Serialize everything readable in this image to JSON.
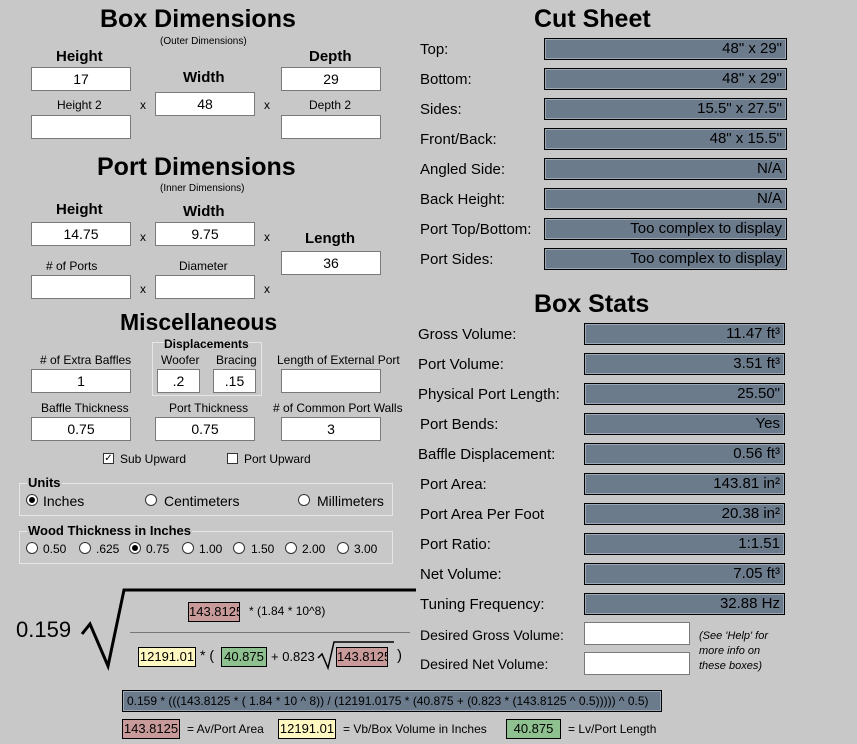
{
  "box": {
    "title": "Box Dimensions",
    "subtitle": "(Outer Dimensions)",
    "height_label": "Height",
    "height": "17",
    "width_label": "Width",
    "width": "48",
    "depth_label": "Depth",
    "depth": "29",
    "height2_label": "Height 2",
    "height2": "",
    "depth2_label": "Depth 2",
    "depth2": "",
    "x": "x"
  },
  "port": {
    "title": "Port Dimensions",
    "subtitle": "(Inner Dimensions)",
    "height_label": "Height",
    "height": "14.75",
    "width_label": "Width",
    "width": "9.75",
    "length_label": "Length",
    "length": "36",
    "ports_label": "# of Ports",
    "ports": "",
    "diameter_label": "Diameter",
    "diameter": ""
  },
  "misc": {
    "title": "Miscellaneous",
    "extra_baffles_label": "# of Extra Baffles",
    "extra_baffles": "1",
    "displacements_label": "Displacements",
    "woofer_label": "Woofer",
    "woofer": ".2",
    "bracing_label": "Bracing",
    "bracing": ".15",
    "ext_port_label": "Length of External Port",
    "ext_port": "",
    "baffle_thk_label": "Baffle Thickness",
    "baffle_thk": "0.75",
    "port_thk_label": "Port Thickness",
    "port_thk": "0.75",
    "common_walls_label": "# of Common Port Walls",
    "common_walls": "3",
    "sub_upward": "Sub Upward",
    "port_upward": "Port Upward"
  },
  "units": {
    "title": "Units",
    "inches": "Inches",
    "cm": "Centimeters",
    "mm": "Millimeters"
  },
  "wood": {
    "title": "Wood Thickness in Inches",
    "opts": [
      "0.50",
      ".625",
      "0.75",
      "1.00",
      "1.50",
      "2.00",
      "3.00"
    ]
  },
  "cut": {
    "title": "Cut Sheet",
    "rows": [
      {
        "label": "Top:",
        "value": "48\" x 29\""
      },
      {
        "label": "Bottom:",
        "value": "48\" x 29\""
      },
      {
        "label": "Sides:",
        "value": "15.5\" x 27.5\""
      },
      {
        "label": "Front/Back:",
        "value": "48\" x 15.5\""
      },
      {
        "label": "Angled Side:",
        "value": "N/A"
      },
      {
        "label": "Back Height:",
        "value": "N/A"
      },
      {
        "label": "Port Top/Bottom:",
        "value": "Too complex to display"
      },
      {
        "label": "Port Sides:",
        "value": "Too complex to display"
      }
    ]
  },
  "stats": {
    "title": "Box Stats",
    "rows": [
      {
        "label": "Gross Volume:",
        "value": "11.47 ft³"
      },
      {
        "label": "Port Volume:",
        "value": "3.51 ft³"
      },
      {
        "label": "Physical Port Length:",
        "value": "25.50\""
      },
      {
        "label": "Port Bends:",
        "value": "Yes"
      },
      {
        "label": "Baffle Displacement:",
        "value": "0.56 ft³"
      },
      {
        "label": "Port Area:",
        "value": "143.81 in²"
      },
      {
        "label": "Port Area Per Foot",
        "value": "20.38 in²"
      },
      {
        "label": "Port Ratio:",
        "value": "1:1.51"
      },
      {
        "label": "Net Volume:",
        "value": "7.05 ft³"
      },
      {
        "label": "Tuning Frequency:",
        "value": "32.88 Hz"
      }
    ],
    "desired_gross_label": "Desired Gross Volume:",
    "desired_net_label": "Desired Net Volume:",
    "desired_gross": "",
    "desired_net": "",
    "help_note": "(See 'Help' for more info on these boxes)"
  },
  "formula": {
    "const": "0.159",
    "av": "143.8125",
    "num_suffix": "* (1.84 * 10^8)",
    "vb": "12191.01",
    "star_paren": "* (",
    "lv": "40.875",
    "plus": "+ 0.823",
    "av2": "143.8125",
    "close": ")",
    "full": "0.159 * (((143.8125 * ( 1.84 * 10 ^ 8)) / (12191.0175 * (40.875 + (0.823 * (143.8125 ^ 0.5))))) ^ 0.5)",
    "legend_av": "143.8125",
    "legend_av_text": "= Av/Port Area",
    "legend_vb": "12191.01",
    "legend_vb_text": "= Vb/Box Volume in Inches",
    "legend_lv": "40.875",
    "legend_lv_text": "= Lv/Port Length"
  }
}
